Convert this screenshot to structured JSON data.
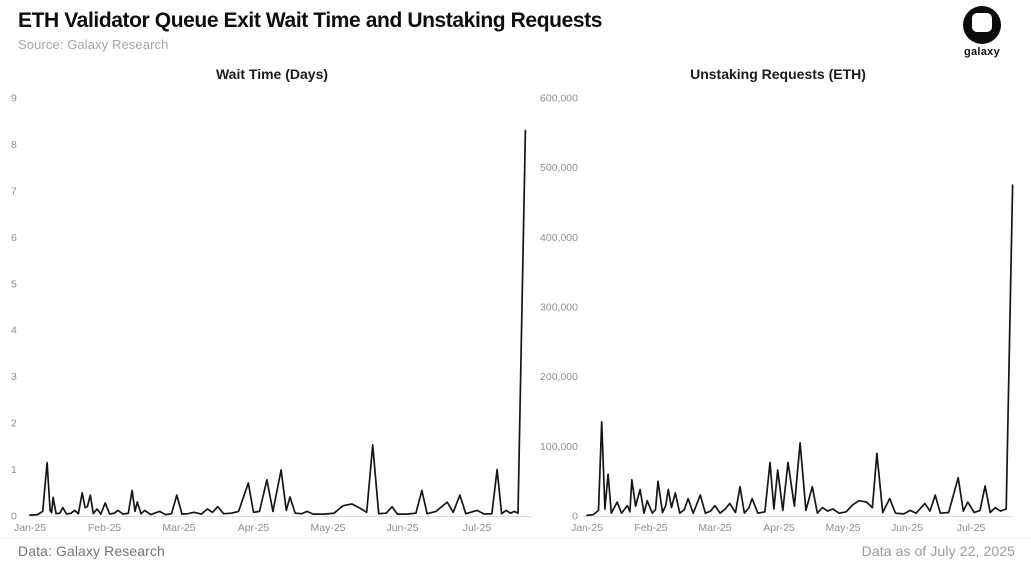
{
  "header": {
    "title": "ETH Validator Queue Exit Wait Time and Unstaking Requests",
    "source": "Source: Galaxy Research"
  },
  "logo": {
    "label": "galaxy"
  },
  "footer": {
    "left": "Data: Galaxy Research",
    "right": "Data as of July 22, 2025"
  },
  "colors": {
    "line": "#161616",
    "axis": "#dcdcdc",
    "tick_text": "#8f8f8f",
    "title_text": "#0d0d0d"
  },
  "chart_data": [
    {
      "type": "line",
      "title": "Wait Time (Days)",
      "ylabel": "Wait Time (Days)",
      "x_unit": "months since Jan-2025",
      "x_tick_labels": [
        "Jan-25",
        "Feb-25",
        "Mar-25",
        "Apr-25",
        "May-25",
        "Jun-25",
        "Jul-25"
      ],
      "x_range_months": [
        0,
        6.7
      ],
      "ylim": [
        0,
        9
      ],
      "y_ticks": [
        0,
        1,
        2,
        3,
        4,
        5,
        6,
        7,
        8,
        9
      ],
      "y_tick_labels": [
        "0",
        "1",
        "2",
        "3",
        "4",
        "5",
        "6",
        "7",
        "8",
        "9"
      ],
      "grid": false,
      "legend": "none",
      "points_month_value": [
        [
          0,
          0.02
        ],
        [
          0.1,
          0.03
        ],
        [
          0.17,
          0.1
        ],
        [
          0.23,
          1.15
        ],
        [
          0.27,
          0.12
        ],
        [
          0.29,
          0.07
        ],
        [
          0.31,
          0.4
        ],
        [
          0.35,
          0.05
        ],
        [
          0.4,
          0.06
        ],
        [
          0.44,
          0.18
        ],
        [
          0.49,
          0.04
        ],
        [
          0.55,
          0.06
        ],
        [
          0.6,
          0.12
        ],
        [
          0.65,
          0.05
        ],
        [
          0.7,
          0.5
        ],
        [
          0.74,
          0.18
        ],
        [
          0.77,
          0.2
        ],
        [
          0.81,
          0.45
        ],
        [
          0.85,
          0.05
        ],
        [
          0.9,
          0.15
        ],
        [
          0.95,
          0.04
        ],
        [
          1.01,
          0.28
        ],
        [
          1.07,
          0.04
        ],
        [
          1.13,
          0.06
        ],
        [
          1.18,
          0.12
        ],
        [
          1.25,
          0.04
        ],
        [
          1.32,
          0.06
        ],
        [
          1.37,
          0.55
        ],
        [
          1.41,
          0.1
        ],
        [
          1.44,
          0.3
        ],
        [
          1.49,
          0.05
        ],
        [
          1.54,
          0.12
        ],
        [
          1.62,
          0.03
        ],
        [
          1.74,
          0.1
        ],
        [
          1.82,
          0.03
        ],
        [
          1.9,
          0.05
        ],
        [
          1.97,
          0.45
        ],
        [
          2.04,
          0.04
        ],
        [
          2.12,
          0.05
        ],
        [
          2.2,
          0.08
        ],
        [
          2.3,
          0.04
        ],
        [
          2.38,
          0.15
        ],
        [
          2.45,
          0.08
        ],
        [
          2.52,
          0.2
        ],
        [
          2.6,
          0.05
        ],
        [
          2.7,
          0.06
        ],
        [
          2.8,
          0.1
        ],
        [
          2.93,
          0.71
        ],
        [
          3.0,
          0.08
        ],
        [
          3.08,
          0.1
        ],
        [
          3.18,
          0.78
        ],
        [
          3.26,
          0.1
        ],
        [
          3.37,
          0.99
        ],
        [
          3.44,
          0.12
        ],
        [
          3.49,
          0.41
        ],
        [
          3.56,
          0.06
        ],
        [
          3.65,
          0.05
        ],
        [
          3.72,
          0.1
        ],
        [
          3.8,
          0.04
        ],
        [
          3.95,
          0.04
        ],
        [
          4.08,
          0.06
        ],
        [
          4.2,
          0.22
        ],
        [
          4.32,
          0.26
        ],
        [
          4.44,
          0.16
        ],
        [
          4.52,
          0.08
        ],
        [
          4.6,
          1.53
        ],
        [
          4.68,
          0.05
        ],
        [
          4.78,
          0.06
        ],
        [
          4.86,
          0.2
        ],
        [
          4.93,
          0.04
        ],
        [
          5.05,
          0.04
        ],
        [
          5.18,
          0.06
        ],
        [
          5.26,
          0.55
        ],
        [
          5.33,
          0.05
        ],
        [
          5.45,
          0.1
        ],
        [
          5.6,
          0.3
        ],
        [
          5.68,
          0.08
        ],
        [
          5.77,
          0.45
        ],
        [
          5.85,
          0.05
        ],
        [
          6.0,
          0.12
        ],
        [
          6.1,
          0.04
        ],
        [
          6.2,
          0.05
        ],
        [
          6.27,
          1.0
        ],
        [
          6.33,
          0.05
        ],
        [
          6.39,
          0.12
        ],
        [
          6.45,
          0.06
        ],
        [
          6.5,
          0.1
        ],
        [
          6.55,
          0.06
        ],
        [
          6.65,
          8.3
        ]
      ]
    },
    {
      "type": "line",
      "title": "Unstaking Requests (ETH)",
      "ylabel": "Unstaking Requests (ETH)",
      "x_unit": "months since Jan-2025",
      "x_tick_labels": [
        "Jan-25",
        "Feb-25",
        "Mar-25",
        "Apr-25",
        "May-25",
        "Jun-25",
        "Jul-25"
      ],
      "x_range_months": [
        0,
        6.7
      ],
      "ylim": [
        0,
        600000
      ],
      "y_ticks": [
        0,
        100000,
        200000,
        300000,
        400000,
        500000,
        600000
      ],
      "y_tick_labels": [
        "0",
        "100,000",
        "200,000",
        "300,000",
        "400,000",
        "500,000",
        "600,000"
      ],
      "grid": false,
      "legend": "none",
      "points_month_value": [
        [
          0,
          1000
        ],
        [
          0.1,
          2000
        ],
        [
          0.18,
          8000
        ],
        [
          0.23,
          135000
        ],
        [
          0.28,
          10000
        ],
        [
          0.33,
          60000
        ],
        [
          0.38,
          4000
        ],
        [
          0.47,
          20000
        ],
        [
          0.54,
          4000
        ],
        [
          0.63,
          15000
        ],
        [
          0.67,
          6000
        ],
        [
          0.7,
          52000
        ],
        [
          0.76,
          14000
        ],
        [
          0.83,
          38000
        ],
        [
          0.89,
          4000
        ],
        [
          0.94,
          22000
        ],
        [
          1.02,
          4000
        ],
        [
          1.07,
          9000
        ],
        [
          1.11,
          50000
        ],
        [
          1.18,
          5000
        ],
        [
          1.23,
          15000
        ],
        [
          1.27,
          38000
        ],
        [
          1.32,
          12000
        ],
        [
          1.38,
          33000
        ],
        [
          1.45,
          4000
        ],
        [
          1.52,
          9000
        ],
        [
          1.58,
          25000
        ],
        [
          1.66,
          4000
        ],
        [
          1.77,
          30000
        ],
        [
          1.85,
          4000
        ],
        [
          1.93,
          7000
        ],
        [
          2.0,
          15000
        ],
        [
          2.08,
          4000
        ],
        [
          2.16,
          10000
        ],
        [
          2.23,
          18000
        ],
        [
          2.32,
          5000
        ],
        [
          2.39,
          42000
        ],
        [
          2.46,
          4000
        ],
        [
          2.53,
          12000
        ],
        [
          2.58,
          25000
        ],
        [
          2.67,
          4000
        ],
        [
          2.78,
          6000
        ],
        [
          2.86,
          77000
        ],
        [
          2.92,
          10000
        ],
        [
          2.98,
          66000
        ],
        [
          3.06,
          8000
        ],
        [
          3.14,
          77000
        ],
        [
          3.24,
          14000
        ],
        [
          3.33,
          105000
        ],
        [
          3.42,
          8000
        ],
        [
          3.52,
          42000
        ],
        [
          3.6,
          4000
        ],
        [
          3.68,
          12000
        ],
        [
          3.76,
          7000
        ],
        [
          3.84,
          10000
        ],
        [
          3.94,
          4000
        ],
        [
          4.05,
          6000
        ],
        [
          4.15,
          16000
        ],
        [
          4.25,
          22000
        ],
        [
          4.37,
          20000
        ],
        [
          4.46,
          12000
        ],
        [
          4.53,
          90000
        ],
        [
          4.62,
          5000
        ],
        [
          4.73,
          25000
        ],
        [
          4.82,
          4000
        ],
        [
          4.95,
          3000
        ],
        [
          5.05,
          8000
        ],
        [
          5.14,
          4000
        ],
        [
          5.28,
          18000
        ],
        [
          5.36,
          7000
        ],
        [
          5.44,
          30000
        ],
        [
          5.52,
          4000
        ],
        [
          5.65,
          5000
        ],
        [
          5.8,
          55000
        ],
        [
          5.88,
          7000
        ],
        [
          5.95,
          20000
        ],
        [
          6.05,
          5000
        ],
        [
          6.14,
          8000
        ],
        [
          6.22,
          43000
        ],
        [
          6.3,
          5000
        ],
        [
          6.38,
          12000
        ],
        [
          6.46,
          7000
        ],
        [
          6.55,
          10000
        ],
        [
          6.65,
          475000
        ]
      ]
    }
  ]
}
